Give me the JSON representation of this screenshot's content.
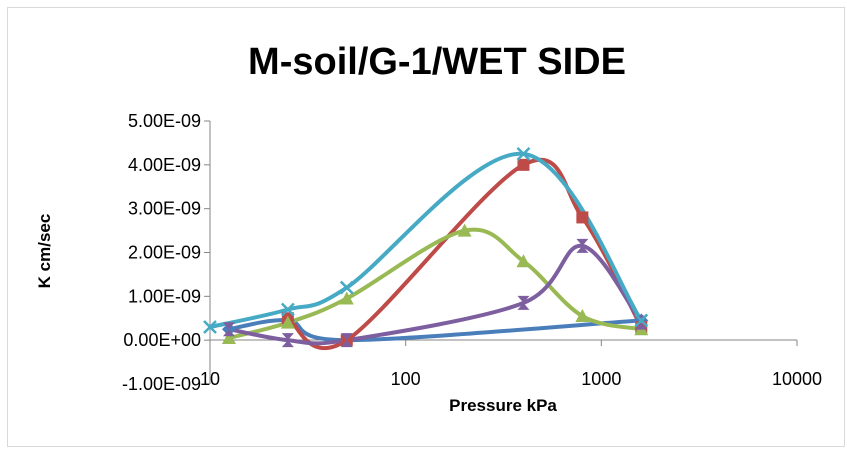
{
  "chart_data": {
    "type": "scatter",
    "title": "M-soil/G-1/WET SIDE",
    "xlabel": "Pressure kPa",
    "ylabel": "K cm/sec",
    "xscale": "log",
    "xlim": [
      10,
      10000
    ],
    "ylim": [
      -1e-09,
      5e-09
    ],
    "x_ticks": [
      {
        "value": 10,
        "label": "10"
      },
      {
        "value": 100,
        "label": "100"
      },
      {
        "value": 1000,
        "label": "1000"
      },
      {
        "value": 10000,
        "label": "10000"
      }
    ],
    "y_ticks": [
      {
        "value": 5e-09,
        "label": "5.00E-09"
      },
      {
        "value": 4e-09,
        "label": "4.00E-09"
      },
      {
        "value": 3e-09,
        "label": "3.00E-09"
      },
      {
        "value": 2e-09,
        "label": "2.00E-09"
      },
      {
        "value": 1e-09,
        "label": "1.00E-09"
      },
      {
        "value": 0,
        "label": "0.00E+00"
      },
      {
        "value": -1e-09,
        "label": "-1.00E-09"
      }
    ],
    "grid": false,
    "smooth": true,
    "series": [
      {
        "color": "#4a7ebb",
        "marker": "diamond",
        "x": [
          12.5,
          25,
          50,
          1600
        ],
        "y": [
          2.5e-10,
          4.5e-10,
          0,
          4.5e-10
        ]
      },
      {
        "color": "#be4b48",
        "marker": "square",
        "x": [
          25,
          50,
          400,
          800,
          1600
        ],
        "y": [
          5e-10,
          0,
          4e-09,
          2.8e-09,
          3e-10
        ]
      },
      {
        "color": "#98b954",
        "marker": "triangle",
        "x": [
          12.5,
          25,
          50,
          200,
          400,
          800,
          1600
        ],
        "y": [
          5e-11,
          4e-10,
          9.5e-10,
          2.5e-09,
          1.8e-09,
          5.5e-10,
          2.5e-10
        ]
      },
      {
        "color": "#7d5fa0",
        "marker": "hourglass",
        "x": [
          12.5,
          25,
          50,
          400,
          800,
          1600
        ],
        "y": [
          2.5e-10,
          0,
          0,
          8.5e-10,
          2.15e-09,
          4e-10
        ]
      },
      {
        "color": "#46aac5",
        "marker": "x",
        "x": [
          10,
          25,
          50,
          400,
          1600
        ],
        "y": [
          3e-10,
          7e-10,
          1.2e-09,
          4.25e-09,
          4.5e-10
        ]
      }
    ]
  }
}
